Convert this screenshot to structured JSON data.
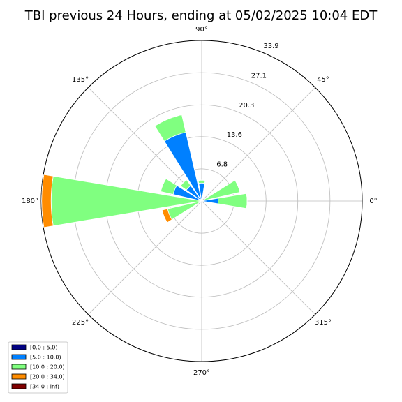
{
  "chart_data": {
    "type": "windrose",
    "title": "TBI previous 24 Hours, ending at 05/02/2025 10:04 EDT",
    "x": [
      0,
      22.5,
      90,
      112.5,
      135,
      157.5,
      180,
      202.5
    ],
    "series": [
      {
        "name": "[0.0 : 5.0)",
        "color": "#000080",
        "values": [
          0,
          0,
          0,
          0,
          0,
          0,
          0,
          0
        ]
      },
      {
        "name": "[5.0 : 10.0)",
        "color": "#0080ff",
        "values": [
          3.5,
          0,
          3.8,
          14.9,
          4.0,
          6.2,
          0,
          0
        ]
      },
      {
        "name": "[10.0 : 20.0)",
        "color": "#80ff80",
        "values": [
          6.1,
          8.3,
          0.6,
          3.8,
          1.5,
          2.7,
          31.8,
          7.4
        ]
      },
      {
        "name": "[20.0 : 34.0)",
        "color": "#ff8c00",
        "values": [
          0,
          0,
          0,
          0,
          0,
          0,
          2.0,
          1.2
        ]
      },
      {
        "name": "[34.0 : inf)",
        "color": "#800000",
        "values": [
          0,
          0,
          0,
          0,
          0,
          0,
          0,
          0
        ]
      }
    ],
    "ylim": [
      0,
      33.9
    ],
    "yticks": [
      6.8,
      13.6,
      20.3,
      27.1,
      33.9
    ],
    "xticks": [
      {
        "value": 0,
        "label": "0°"
      },
      {
        "value": 45,
        "label": "45°"
      },
      {
        "value": 90,
        "label": "90°"
      },
      {
        "value": 135,
        "label": "135°"
      },
      {
        "value": 180,
        "label": "180°"
      },
      {
        "value": 225,
        "label": "225°"
      },
      {
        "value": 270,
        "label": "270°"
      },
      {
        "value": 315,
        "label": "315°"
      }
    ],
    "grid": true,
    "legend": "lower left"
  }
}
